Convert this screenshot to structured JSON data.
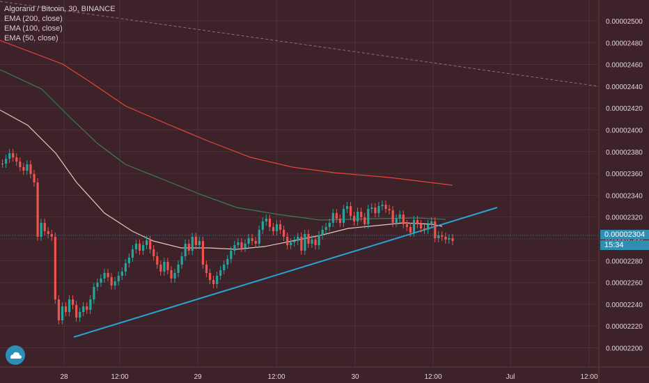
{
  "legend": {
    "symbol": "Algorand / Bitcoin, 30, BINANCE",
    "ema200": "EMA (200, close)",
    "ema100": "EMA (100, close)",
    "ema50": "EMA (50, close)"
  },
  "price_tag": {
    "last_price": "0.00002304",
    "countdown": "15:34"
  },
  "colors": {
    "background": "#3d2229",
    "grid": "#4d3038",
    "up": "#26a69a",
    "down": "#ef5350",
    "ema200": "#e8453c",
    "ema100": "#3f7a5f",
    "ema50": "#e8c7c4",
    "trendline": "#29a3d6",
    "last_price_line": "#2f8fb3",
    "axis_text": "#e0d6d8",
    "dashed_line": "#8a7078"
  },
  "chart_data": {
    "type": "candlestick",
    "title": "Algorand / Bitcoin, 30, BINANCE",
    "y_ticks": [
      "0.00002500",
      "0.00002480",
      "0.00002460",
      "0.00002440",
      "0.00002420",
      "0.00002400",
      "0.00002380",
      "0.00002360",
      "0.00002340",
      "0.00002320",
      "0.00002300",
      "0.00002280",
      "0.00002260",
      "0.00002240",
      "0.00002220",
      "0.00002200"
    ],
    "x_ticks": [
      "28",
      "12:00",
      "29",
      "12:00",
      "30",
      "12:00",
      "Jul",
      "12:00"
    ],
    "ylim": [
      2.19e-05,
      2.51e-05
    ],
    "grid": true,
    "last_price": 2.304e-05,
    "series": [
      {
        "name": "EMA (200, close)",
        "points": [
          [
            0,
            2.465e-05
          ],
          [
            4,
            2.452e-05
          ],
          [
            8,
            2.424e-05
          ],
          [
            12,
            2.404e-05
          ],
          [
            16,
            2.386e-05
          ],
          [
            20,
            2.37e-05
          ],
          [
            24,
            2.36e-05
          ],
          [
            28,
            2.356e-05
          ],
          [
            32,
            2.348e-05
          ]
        ]
      },
      {
        "name": "EMA (100, close)",
        "points": [
          [
            0,
            2.455e-05
          ],
          [
            4,
            2.42e-05
          ],
          [
            8,
            2.37e-05
          ],
          [
            12,
            2.348e-05
          ],
          [
            16,
            2.33e-05
          ],
          [
            20,
            2.32e-05
          ],
          [
            24,
            2.318e-05
          ],
          [
            28,
            2.316e-05
          ]
        ]
      },
      {
        "name": "EMA (50, close)",
        "points": [
          [
            0,
            2.42e-05
          ],
          [
            2,
            2.4e-05
          ],
          [
            4,
            2.36e-05
          ],
          [
            6,
            2.32e-05
          ],
          [
            8,
            2.3e-05
          ],
          [
            10,
            2.29e-05
          ],
          [
            12,
            2.29e-05
          ],
          [
            14,
            2.29e-05
          ],
          [
            16,
            2.3e-05
          ],
          [
            18,
            2.3e-05
          ],
          [
            20,
            2.31e-05
          ],
          [
            22,
            2.32e-05
          ],
          [
            24,
            2.32e-05
          ],
          [
            26,
            2.32e-05
          ],
          [
            28,
            2.31e-05
          ]
        ]
      }
    ]
  }
}
